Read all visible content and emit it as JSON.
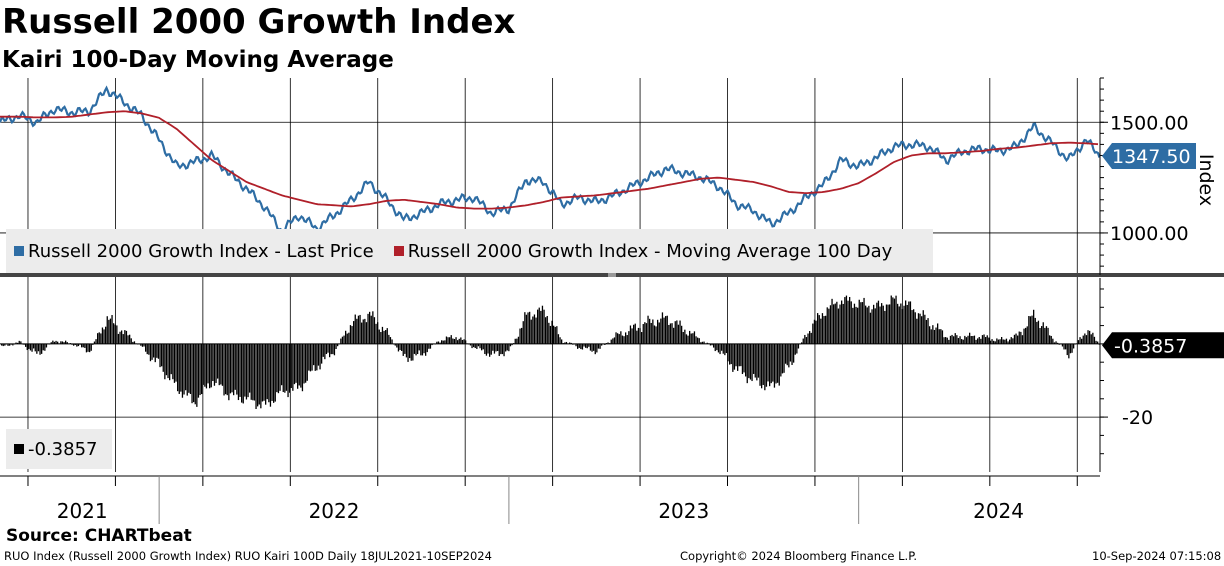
{
  "title": "Russell 2000 Growth Index",
  "subtitle": "Kairi 100-Day Moving Average",
  "source": "Source: CHARTbeat",
  "footer": {
    "left": "RUO Index (Russell 2000 Growth Index) RUO Kairi 100D  Daily 18JUL2021-10SEP2024",
    "center": "Copyright© 2024 Bloomberg Finance L.P.",
    "right": "10-Sep-2024 07:15:08"
  },
  "colors": {
    "price": "#2e6da4",
    "ma": "#b0202a",
    "kairi": "#000000",
    "grid": "#000000",
    "legend_bg": "#ececec"
  },
  "chart_data": [
    {
      "type": "line",
      "title": "Russell 2000 Growth Index",
      "ylabel": "Index",
      "ylim": [
        810,
        1700
      ],
      "yticks": [
        1000,
        1500
      ],
      "ytick_labels": [
        "1000.00",
        "1500.00"
      ],
      "x_start": 2021.545,
      "x_end": 2024.69,
      "x_gridlines": [
        2021.625,
        2021.875,
        2022.125,
        2022.375,
        2022.625,
        2022.875,
        2023.125,
        2023.375,
        2023.625,
        2023.875,
        2024.125,
        2024.375,
        2024.625
      ],
      "x_year_labels": [
        {
          "label": "2021",
          "x": 2021.78
        },
        {
          "label": "2022",
          "x": 2022.5
        },
        {
          "label": "2023",
          "x": 2023.5
        },
        {
          "label": "2024",
          "x": 2024.4
        }
      ],
      "x_year_separators": [
        2022.0,
        2023.0,
        2024.0
      ],
      "last_price_label": "1347.50",
      "legend": [
        "Russell 2000 Growth Index - Last Price",
        "Russell 2000 Growth Index - Moving Average 100 Day"
      ],
      "series": [
        {
          "name": "Russell 2000 Growth Index - Last Price",
          "x": [
            2021.545,
            2021.6,
            2021.65,
            2021.7,
            2021.75,
            2021.8,
            2021.85,
            2021.9,
            2021.95,
            2022.0,
            2022.05,
            2022.1,
            2022.15,
            2022.2,
            2022.25,
            2022.3,
            2022.35,
            2022.4,
            2022.45,
            2022.5,
            2022.55,
            2022.6,
            2022.65,
            2022.7,
            2022.75,
            2022.8,
            2022.85,
            2022.9,
            2022.95,
            2023.0,
            2023.05,
            2023.1,
            2023.15,
            2023.2,
            2023.25,
            2023.3,
            2023.35,
            2023.4,
            2023.45,
            2023.5,
            2023.55,
            2023.6,
            2023.65,
            2023.7,
            2023.75,
            2023.8,
            2023.85,
            2023.9,
            2023.95,
            2024.0,
            2024.05,
            2024.1,
            2024.15,
            2024.2,
            2024.25,
            2024.3,
            2024.35,
            2024.4,
            2024.45,
            2024.5,
            2024.55,
            2024.6,
            2024.65,
            2024.69
          ],
          "values": [
            1500,
            1530,
            1500,
            1560,
            1545,
            1550,
            1650,
            1590,
            1530,
            1420,
            1300,
            1320,
            1350,
            1270,
            1200,
            1120,
            1010,
            1080,
            1020,
            1080,
            1150,
            1230,
            1150,
            1060,
            1090,
            1130,
            1150,
            1160,
            1090,
            1110,
            1240,
            1230,
            1130,
            1160,
            1140,
            1170,
            1210,
            1250,
            1290,
            1270,
            1250,
            1210,
            1130,
            1100,
            1040,
            1090,
            1160,
            1220,
            1330,
            1300,
            1340,
            1390,
            1400,
            1390,
            1330,
            1370,
            1380,
            1370,
            1390,
            1480,
            1410,
            1330,
            1420,
            1347.5
          ]
        },
        {
          "name": "Russell 2000 Growth Index - Moving Average 100 Day",
          "x": [
            2021.545,
            2021.6,
            2021.65,
            2021.7,
            2021.75,
            2021.8,
            2021.85,
            2021.9,
            2021.95,
            2022.0,
            2022.05,
            2022.1,
            2022.15,
            2022.2,
            2022.25,
            2022.3,
            2022.35,
            2022.4,
            2022.45,
            2022.5,
            2022.55,
            2022.6,
            2022.65,
            2022.7,
            2022.75,
            2022.8,
            2022.85,
            2022.9,
            2022.95,
            2023.0,
            2023.05,
            2023.1,
            2023.15,
            2023.2,
            2023.25,
            2023.3,
            2023.35,
            2023.4,
            2023.45,
            2023.5,
            2023.55,
            2023.6,
            2023.65,
            2023.7,
            2023.75,
            2023.8,
            2023.85,
            2023.9,
            2023.95,
            2024.0,
            2024.05,
            2024.1,
            2024.15,
            2024.2,
            2024.25,
            2024.3,
            2024.35,
            2024.4,
            2024.45,
            2024.5,
            2024.55,
            2024.6,
            2024.65,
            2024.69
          ],
          "values": [
            1525,
            1525,
            1522,
            1522,
            1525,
            1535,
            1545,
            1550,
            1540,
            1520,
            1470,
            1400,
            1330,
            1280,
            1230,
            1200,
            1170,
            1150,
            1130,
            1125,
            1120,
            1130,
            1145,
            1150,
            1140,
            1130,
            1115,
            1110,
            1110,
            1115,
            1125,
            1140,
            1160,
            1165,
            1170,
            1180,
            1190,
            1200,
            1215,
            1230,
            1245,
            1250,
            1240,
            1230,
            1210,
            1185,
            1180,
            1185,
            1200,
            1225,
            1270,
            1320,
            1350,
            1360,
            1360,
            1365,
            1370,
            1380,
            1385,
            1395,
            1405,
            1408,
            1405,
            1400
          ]
        }
      ]
    },
    {
      "type": "bar",
      "title": "Kairi 100-Day Moving Average",
      "ylim": [
        -35,
        18
      ],
      "yticks": [
        -20
      ],
      "ytick_labels": [
        "-20"
      ],
      "last_value_label": "-0.3857",
      "legend": [
        "-0.3857"
      ],
      "series": [
        {
          "name": "Kairi 100-Day",
          "x": [
            2021.545,
            2021.6,
            2021.65,
            2021.7,
            2021.75,
            2021.8,
            2021.85,
            2021.9,
            2021.95,
            2022.0,
            2022.05,
            2022.1,
            2022.15,
            2022.2,
            2022.25,
            2022.3,
            2022.35,
            2022.4,
            2022.45,
            2022.5,
            2022.55,
            2022.6,
            2022.65,
            2022.7,
            2022.75,
            2022.8,
            2022.85,
            2022.9,
            2022.95,
            2023.0,
            2023.05,
            2023.1,
            2023.15,
            2023.2,
            2023.25,
            2023.3,
            2023.35,
            2023.4,
            2023.45,
            2023.5,
            2023.55,
            2023.6,
            2023.65,
            2023.7,
            2023.75,
            2023.8,
            2023.85,
            2023.9,
            2023.95,
            2024.0,
            2024.05,
            2024.1,
            2024.15,
            2024.2,
            2024.25,
            2024.3,
            2024.35,
            2024.4,
            2024.45,
            2024.5,
            2024.55,
            2024.6,
            2024.65,
            2024.69
          ],
          "values": [
            -1,
            0.5,
            -3,
            1,
            0,
            -2,
            7,
            3,
            -1,
            -6,
            -12,
            -16,
            -10,
            -14,
            -15,
            -17,
            -13,
            -12,
            -6,
            -2,
            6,
            8,
            3,
            -4,
            -3,
            1,
            2,
            -1,
            -3,
            -2,
            8,
            9,
            1,
            -1,
            -2,
            2,
            4,
            6,
            7,
            4,
            1,
            -2,
            -7,
            -10,
            -12,
            -6,
            3,
            9,
            12,
            11,
            10,
            12,
            10,
            6,
            2,
            2,
            2,
            1,
            2,
            8,
            2,
            -3,
            4,
            -0.3857
          ]
        }
      ]
    }
  ]
}
